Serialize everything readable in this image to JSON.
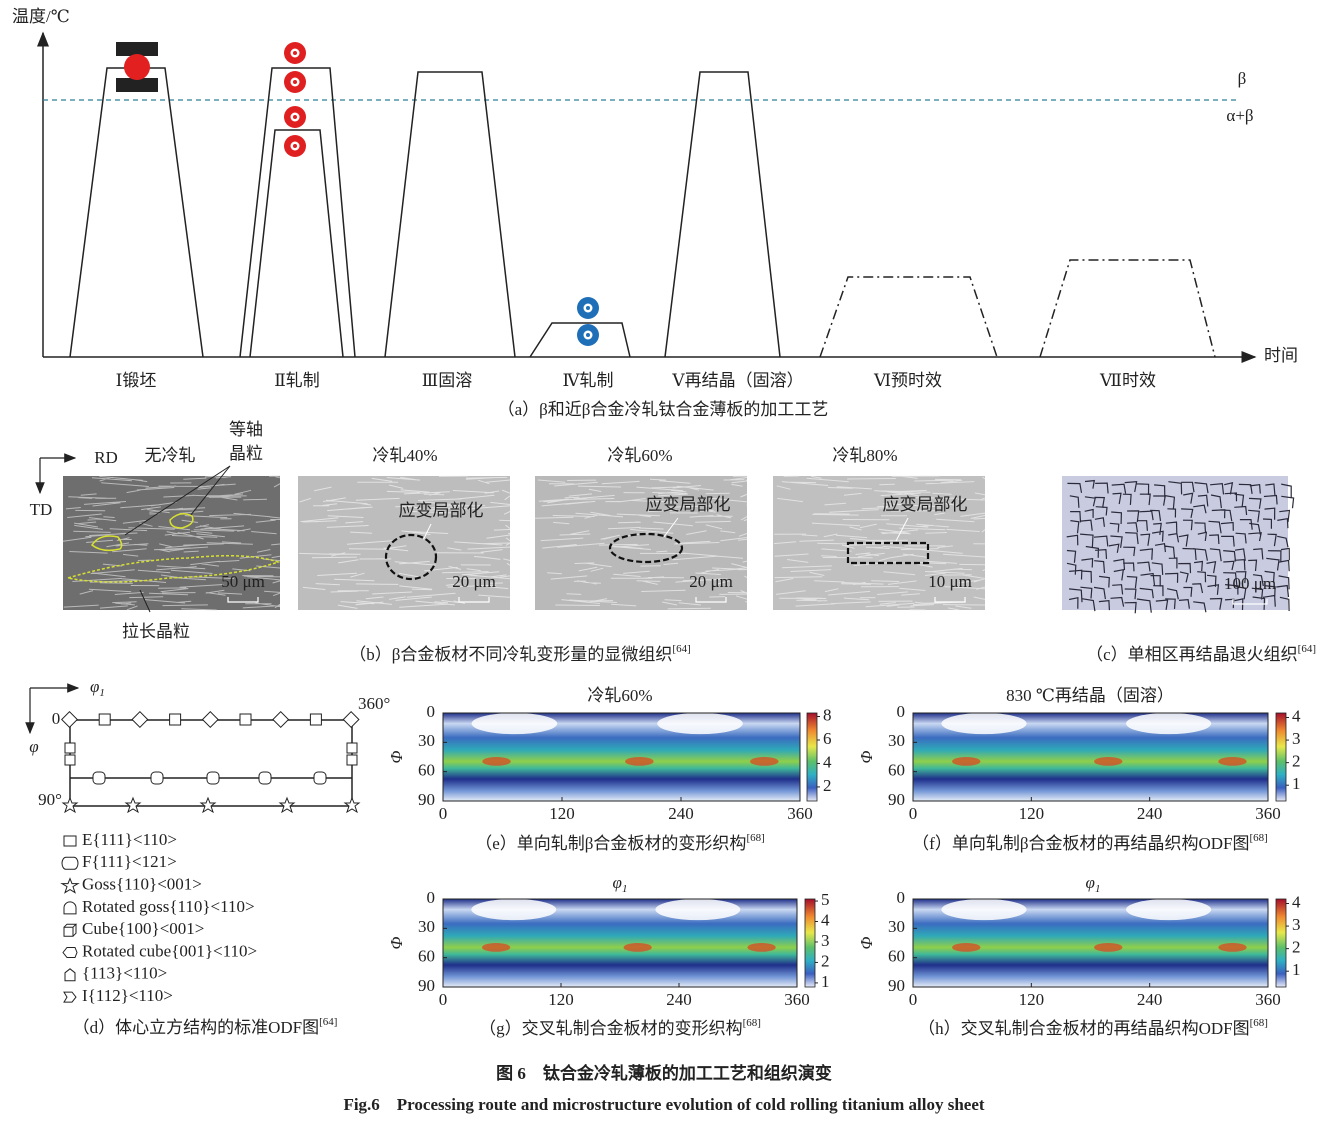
{
  "panel_a": {
    "y_axis_label": "温度/℃",
    "x_axis_label": "时间",
    "phase_above": "β",
    "phase_below": "α+β",
    "stages": [
      "Ⅰ锻坯",
      "Ⅱ轧制",
      "Ⅲ固溶",
      "Ⅳ轧制",
      "Ⅴ再结晶（固溶）",
      "Ⅵ预时效",
      "Ⅶ时效"
    ],
    "caption": "（a）β和近β合金冷轧钛合金薄板的加工工艺"
  },
  "panel_b": {
    "rd": "RD",
    "td": "TD",
    "equiaxed": [
      "等轴",
      "晶粒"
    ],
    "elongated": "拉长晶粒",
    "images": [
      {
        "title": "无冷轧",
        "scale": "50 μm"
      },
      {
        "title": "冷轧40%",
        "note": "应变局部化",
        "scale": "20 μm"
      },
      {
        "title": "冷轧60%",
        "note": "应变局部化",
        "scale": "20 μm"
      },
      {
        "title": "冷轧80%",
        "note": "应变局部化",
        "scale": "10 μm"
      }
    ],
    "caption": "（b）β合金板材不同冷轧变形量的显微组织",
    "ref": "[64]"
  },
  "panel_c": {
    "scale": "100 μm",
    "caption": "（c）单相区再结晶退火组织",
    "ref": "[64]"
  },
  "panel_d": {
    "axis_1": "φ",
    "axis_1_sub": "1",
    "axis_2": "φ",
    "corner_origin": "0",
    "corner_right": "360°",
    "corner_bottom": "90°",
    "legend": [
      "E{111}<110>",
      "F{111}<121>",
      "Goss{110}<001>",
      "Rotated goss{110}<110>",
      "Cube{100}<001>",
      "Rotated cube{001}<110>",
      "{113}<110>",
      "I{112}<110>"
    ],
    "caption": "（d）体心立方结构的标准ODF图",
    "ref": "[64]"
  },
  "odf_panels": [
    {
      "title": "冷轧60%",
      "y_label": "Φ",
      "xlim": [
        0,
        360
      ],
      "xticks": [
        0,
        120,
        240,
        360
      ],
      "ylim": [
        0,
        90
      ],
      "yticks": [
        0,
        30,
        60,
        90
      ],
      "colorbar_lim": [
        0.8,
        8.3
      ],
      "colorbar_ticks": [
        2,
        4,
        6,
        8
      ],
      "caption": "（e）单向轧制β合金板材的变形织构",
      "ref": "[68]"
    },
    {
      "title": "830 ℃再结晶（固溶）",
      "y_label": "Φ",
      "xlim": [
        0,
        360
      ],
      "xticks": [
        0,
        120,
        240,
        360
      ],
      "ylim": [
        0,
        90
      ],
      "yticks": [
        0,
        30,
        60,
        90
      ],
      "colorbar_lim": [
        0.3,
        4.2
      ],
      "colorbar_ticks": [
        1,
        2,
        3,
        4
      ],
      "caption": "（f）单向轧制β合金板材的再结晶织构ODF图",
      "ref": "[68]"
    },
    {
      "title": "φ",
      "title_sub": "1",
      "y_label": "Φ",
      "xlim": [
        0,
        360
      ],
      "xticks": [
        0,
        120,
        240,
        360
      ],
      "ylim": [
        0,
        90
      ],
      "yticks": [
        0,
        30,
        60,
        90
      ],
      "colorbar_lim": [
        0.8,
        5.1
      ],
      "colorbar_ticks": [
        1,
        2,
        3,
        4,
        5
      ],
      "caption": "（g）交叉轧制合金板材的变形织构",
      "ref": "[68]"
    },
    {
      "title": "φ",
      "title_sub": "1",
      "y_label": "Φ",
      "xlim": [
        0,
        360
      ],
      "xticks": [
        0,
        120,
        240,
        360
      ],
      "ylim": [
        0,
        90
      ],
      "yticks": [
        0,
        30,
        60,
        90
      ],
      "colorbar_lim": [
        0.3,
        4.2
      ],
      "colorbar_ticks": [
        1,
        2,
        3,
        4
      ],
      "caption": "（h）交叉轧制合金板材的再结晶织构ODF图",
      "ref": "[68]"
    }
  ],
  "figure_caption_cn": "图 6　钛合金冷轧薄板的加工工艺和组织演变",
  "figure_caption_en": "Fig.6　Processing route and microstructure evolution of cold rolling titanium alloy sheet"
}
